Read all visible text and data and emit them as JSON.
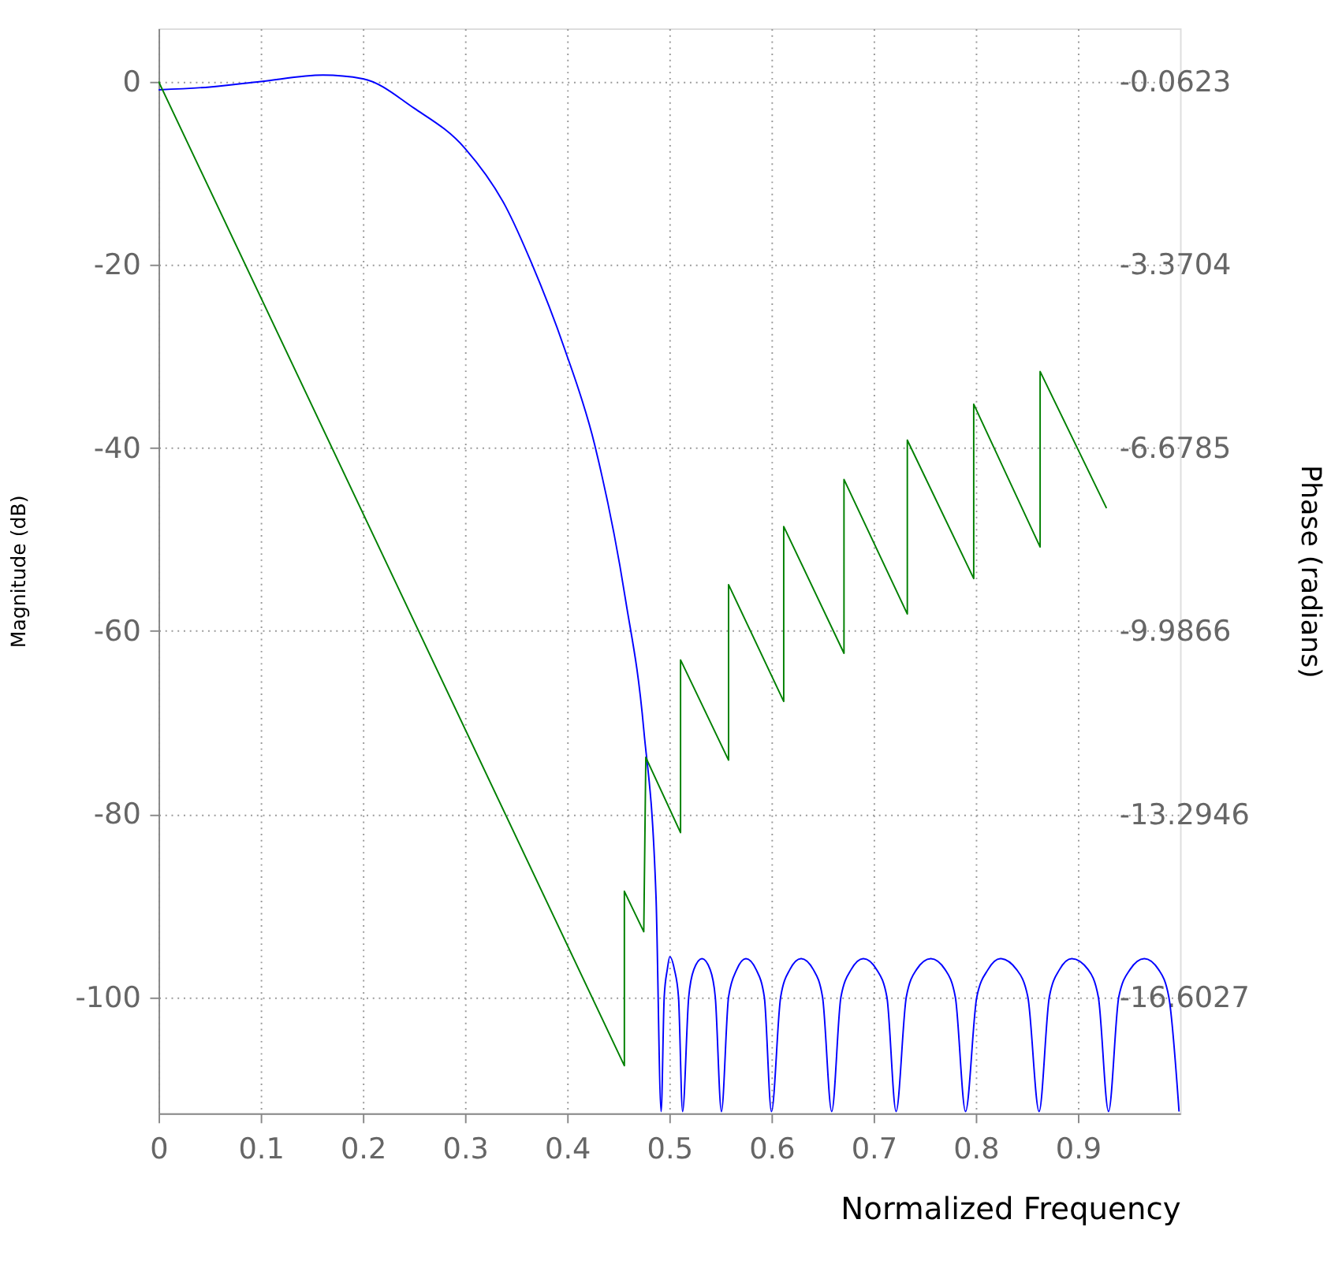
{
  "chart_data": {
    "type": "line",
    "xlabel": "Normalized Frequency",
    "ylabel": "Magnitude (dB)",
    "y2label": "Phase (radians)",
    "xlim": [
      0,
      1.0
    ],
    "xticks": [
      0,
      0.1,
      0.2,
      0.3,
      0.4,
      0.5,
      0.6,
      0.7,
      0.8,
      0.9
    ],
    "ylim": [
      -112.7,
      5.8
    ],
    "yticks": [
      0,
      -20,
      -40,
      -60,
      -80,
      -100
    ],
    "y2lim": [
      -18.7,
      0.897
    ],
    "y2ticks": [
      -0.0623,
      -3.3704,
      -6.6785,
      -9.9866,
      -13.2946,
      -16.6027
    ],
    "grid": true,
    "marker": "none",
    "line_style": "solid",
    "series": [
      {
        "color": "#0000ff",
        "x": [
          0,
          0.05,
          0.1,
          0.161,
          0.2,
          0.25,
          0.3,
          0.34,
          0.365,
          0.3975,
          0.427,
          0.457,
          0.475,
          0.487,
          0.492,
          0.495,
          0.498,
          0.5005,
          0.505,
          0.509,
          0.513,
          0.519,
          0.524,
          0.532,
          0.54,
          0.545,
          0.551,
          0.558,
          0.566,
          0.575,
          0.585,
          0.593,
          0.6,
          0.609,
          0.618,
          0.629,
          0.641,
          0.65,
          0.659,
          0.668,
          0.678,
          0.69,
          0.703,
          0.713,
          0.722,
          0.732,
          0.742,
          0.756,
          0.77,
          0.78,
          0.79,
          0.801,
          0.812,
          0.824,
          0.84,
          0.851,
          0.862,
          0.872,
          0.882,
          0.894,
          0.91,
          0.92,
          0.93,
          0.94,
          0.951,
          0.965,
          0.979,
          0.989,
          0.999
        ],
        "values": [
          -0.9,
          -0.6,
          0.0,
          0.7,
          0.3,
          -2.9,
          -7.3,
          -13.7,
          -19.8,
          -29.2,
          -39.7,
          -56.5,
          -70.8,
          -89.1,
          -112.5,
          -100,
          -97,
          -95.6,
          -97,
          -100,
          -112.5,
          -100,
          -97,
          -95.8,
          -97,
          -100,
          -112.5,
          -100,
          -97,
          -95.8,
          -97,
          -100,
          -112.5,
          -100,
          -97,
          -95.8,
          -97,
          -100,
          -112.5,
          -100,
          -97,
          -95.8,
          -97,
          -100,
          -112.5,
          -100,
          -97,
          -95.8,
          -97,
          -100,
          -112.5,
          -100,
          -97,
          -95.8,
          -97,
          -100,
          -112.5,
          -100,
          -97,
          -95.8,
          -97,
          -100,
          -112.5,
          -100,
          -97,
          -95.8,
          -97,
          -100,
          -112.5
        ]
      },
      {
        "color": "#008000",
        "axis": "y2",
        "x": [
          0,
          0.456,
          0.456,
          0.475,
          0.477,
          0.511,
          0.511,
          0.558,
          0.558,
          0.612,
          0.612,
          0.671,
          0.671,
          0.733,
          0.733,
          0.798,
          0.798,
          0.863,
          0.863,
          0.928
        ],
        "values": [
          -0.06,
          -17.84,
          -14.69,
          -15.42,
          -12.27,
          -13.63,
          -10.51,
          -12.32,
          -9.15,
          -11.26,
          -8.1,
          -10.39,
          -7.25,
          -9.68,
          -6.54,
          -9.04,
          -5.89,
          -8.47,
          -5.3,
          -7.77
        ]
      }
    ]
  }
}
